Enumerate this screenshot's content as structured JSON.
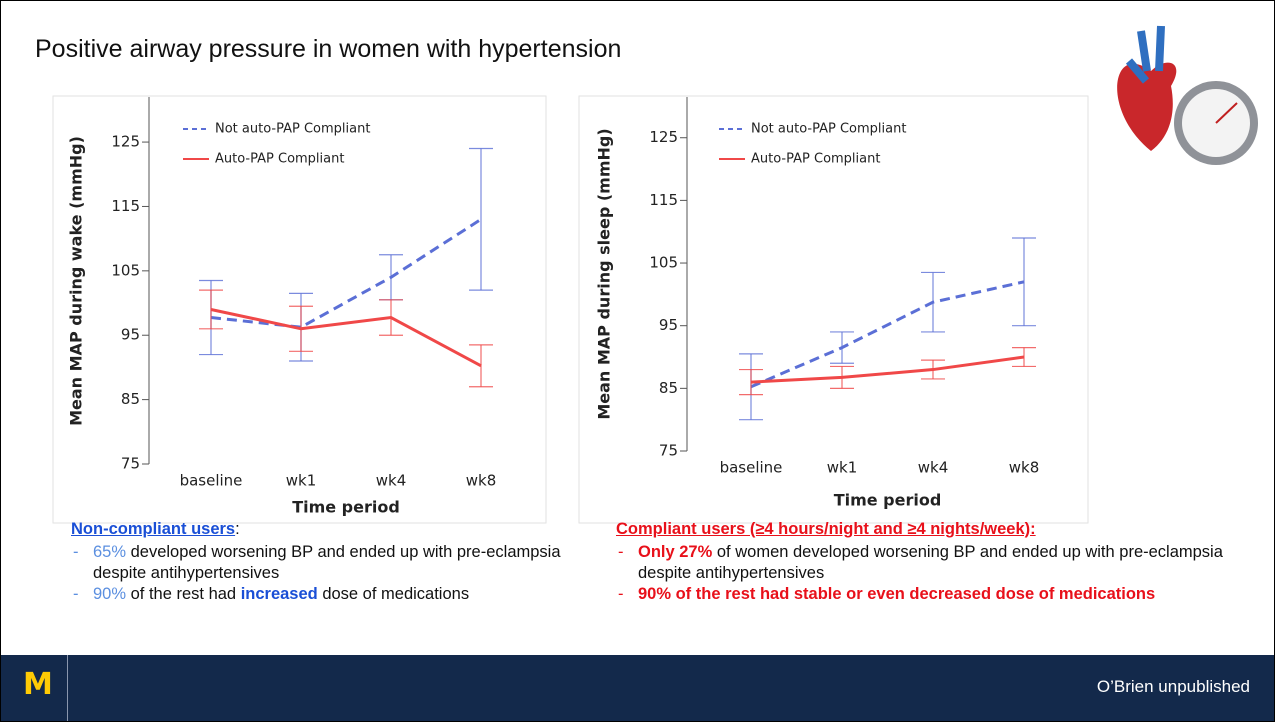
{
  "slide": {
    "title": "Positive airway pressure in women with hypertension",
    "footer": {
      "logo": "M",
      "credit": "O’Brien unpublished"
    }
  },
  "chart_data": [
    {
      "type": "line",
      "ylabel": "Mean MAP during wake (mmHg)",
      "xlabel": "Time period",
      "categories": [
        "baseline",
        "wk1",
        "wk4",
        "wk8"
      ],
      "ylim": [
        75,
        132
      ],
      "yticks": [
        75,
        85,
        95,
        105,
        115,
        125
      ],
      "legend": "upper left",
      "series": [
        {
          "name": "Not auto-PAP Compliant",
          "color": "#5b6fd6",
          "dashed": true,
          "values": [
            97.75,
            96.25,
            104,
            113
          ],
          "errors": [
            5.75,
            5.25,
            3.5,
            11
          ]
        },
        {
          "name": "Auto-PAP Compliant",
          "color": "#f04848",
          "dashed": false,
          "values": [
            99,
            96,
            97.75,
            90.25
          ],
          "errors": [
            3,
            3.5,
            2.75,
            3.25
          ]
        }
      ]
    },
    {
      "type": "line",
      "ylabel": "Mean MAP during sleep (mmHg)",
      "xlabel": "Time period",
      "categories": [
        "baseline",
        "wk1",
        "wk4",
        "wk8"
      ],
      "ylim": [
        75,
        131.5
      ],
      "yticks": [
        75,
        85,
        95,
        105,
        115,
        125
      ],
      "legend": "upper left",
      "series": [
        {
          "name": "Not auto-PAP Compliant",
          "color": "#5b6fd6",
          "dashed": true,
          "values": [
            85.25,
            91.5,
            98.75,
            102
          ],
          "errors": [
            5.25,
            2.5,
            4.75,
            7
          ]
        },
        {
          "name": "Auto-PAP Compliant",
          "color": "#f04848",
          "dashed": false,
          "values": [
            86,
            86.75,
            88,
            90
          ],
          "errors": [
            2,
            1.75,
            1.5,
            1.5
          ]
        }
      ]
    }
  ],
  "notes": {
    "left": {
      "heading": [
        "Non-compliant users",
        ":"
      ],
      "bullets": [
        [
          "65%",
          " developed worsening BP and ended up with pre-eclampsia despite antihypertensives"
        ],
        [
          "90%",
          " of the rest had ",
          "increased",
          " dose of medications"
        ]
      ]
    },
    "right": {
      "heading": "Compliant users (≥4 hours/night and ≥4 nights/week):",
      "bullets": [
        [
          "Only 27%",
          " of women developed worsening BP and ended up with pre-eclampsia despite antihypertensives"
        ],
        [
          "90% of the rest had stable or even decreased dose of medications"
        ]
      ]
    }
  }
}
